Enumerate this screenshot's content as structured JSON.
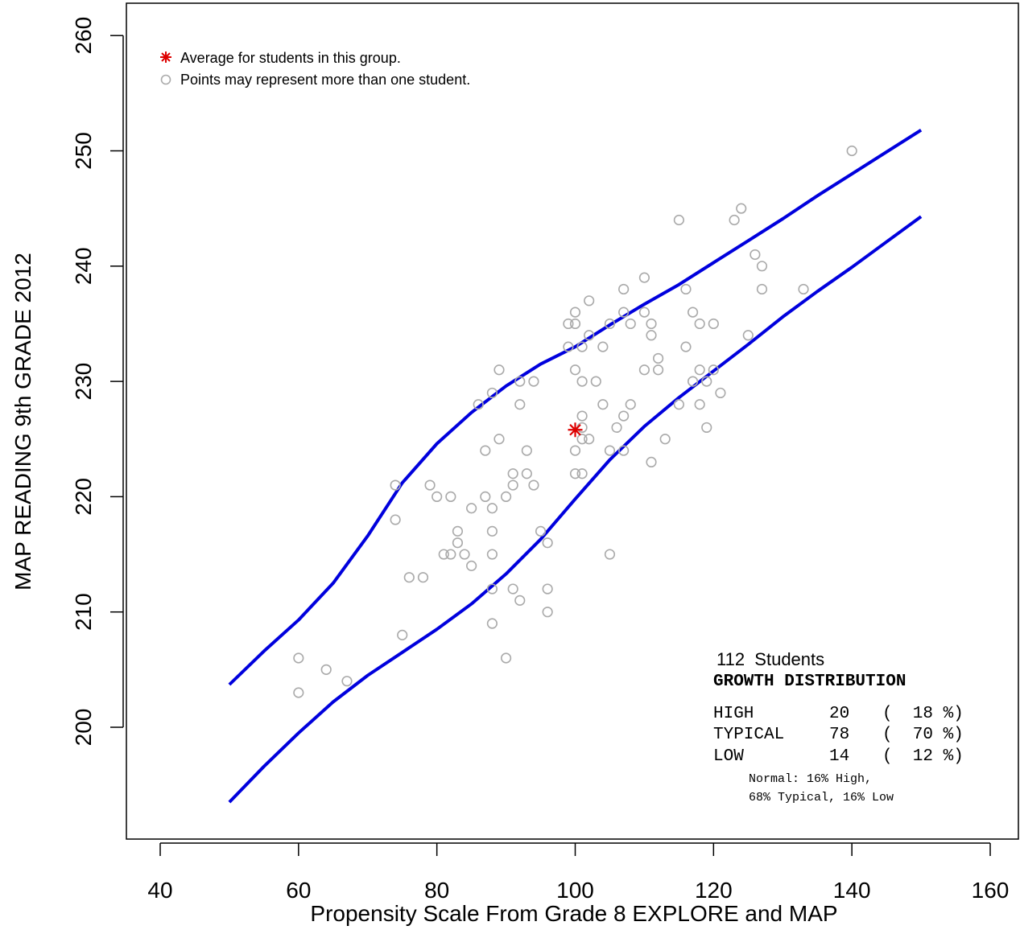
{
  "chart_data": {
    "type": "scatter",
    "xlabel": "Propensity Scale From Grade 8 EXPLORE and MAP",
    "ylabel": "MAP READING 9th GRADE 2012",
    "xlim": [
      40,
      160
    ],
    "ylim": [
      192,
      262
    ],
    "x_ticks": [
      40,
      60,
      80,
      100,
      120,
      140,
      160
    ],
    "y_ticks": [
      200,
      210,
      220,
      230,
      240,
      250,
      260
    ],
    "grid": false,
    "legend_placement": "top-left",
    "legend": [
      {
        "symbol": "asterisk",
        "color": "#dd0000",
        "label": "Average for students in this group."
      },
      {
        "symbol": "circle",
        "color": "#aaaaaa",
        "label": "Points may represent more than one student."
      }
    ],
    "colors": {
      "points": "#aaaaaa",
      "average": "#dd0000",
      "band": "#0000dd"
    },
    "average_point": {
      "x": 100,
      "y": 225.8
    },
    "points": [
      [
        60,
        206
      ],
      [
        60,
        203
      ],
      [
        64,
        205
      ],
      [
        67,
        204
      ],
      [
        74,
        221
      ],
      [
        74,
        218
      ],
      [
        75,
        208
      ],
      [
        76,
        213
      ],
      [
        78,
        213
      ],
      [
        79,
        221
      ],
      [
        80,
        220
      ],
      [
        81,
        215
      ],
      [
        82,
        220
      ],
      [
        82,
        215
      ],
      [
        83,
        217
      ],
      [
        83,
        216
      ],
      [
        84,
        215
      ],
      [
        85,
        219
      ],
      [
        85,
        214
      ],
      [
        86,
        228
      ],
      [
        87,
        224
      ],
      [
        87,
        220
      ],
      [
        88,
        229
      ],
      [
        88,
        219
      ],
      [
        88,
        217
      ],
      [
        88,
        215
      ],
      [
        88,
        212
      ],
      [
        88,
        209
      ],
      [
        89,
        231
      ],
      [
        89,
        225
      ],
      [
        90,
        220
      ],
      [
        90,
        206
      ],
      [
        91,
        222
      ],
      [
        91,
        221
      ],
      [
        91,
        212
      ],
      [
        92,
        230
      ],
      [
        92,
        228
      ],
      [
        92,
        211
      ],
      [
        93,
        224
      ],
      [
        93,
        222
      ],
      [
        94,
        230
      ],
      [
        94,
        221
      ],
      [
        95,
        217
      ],
      [
        96,
        216
      ],
      [
        96,
        212
      ],
      [
        96,
        210
      ],
      [
        99,
        235
      ],
      [
        99,
        233
      ],
      [
        100,
        236
      ],
      [
        100,
        235
      ],
      [
        100,
        231
      ],
      [
        100,
        224
      ],
      [
        100,
        222
      ],
      [
        101,
        233
      ],
      [
        101,
        230
      ],
      [
        101,
        227
      ],
      [
        101,
        226
      ],
      [
        101,
        225
      ],
      [
        101,
        222
      ],
      [
        102,
        237
      ],
      [
        102,
        234
      ],
      [
        102,
        225
      ],
      [
        103,
        230
      ],
      [
        104,
        233
      ],
      [
        104,
        228
      ],
      [
        105,
        235
      ],
      [
        105,
        224
      ],
      [
        105,
        215
      ],
      [
        106,
        226
      ],
      [
        107,
        238
      ],
      [
        107,
        236
      ],
      [
        107,
        227
      ],
      [
        107,
        224
      ],
      [
        108,
        235
      ],
      [
        108,
        228
      ],
      [
        110,
        239
      ],
      [
        110,
        236
      ],
      [
        110,
        231
      ],
      [
        111,
        235
      ],
      [
        111,
        234
      ],
      [
        111,
        223
      ],
      [
        112,
        232
      ],
      [
        112,
        231
      ],
      [
        113,
        225
      ],
      [
        115,
        244
      ],
      [
        115,
        228
      ],
      [
        116,
        238
      ],
      [
        116,
        233
      ],
      [
        117,
        236
      ],
      [
        117,
        230
      ],
      [
        118,
        235
      ],
      [
        118,
        231
      ],
      [
        118,
        228
      ],
      [
        119,
        230
      ],
      [
        119,
        226
      ],
      [
        120,
        235
      ],
      [
        120,
        231
      ],
      [
        121,
        229
      ],
      [
        123,
        244
      ],
      [
        124,
        245
      ],
      [
        125,
        234
      ],
      [
        126,
        241
      ],
      [
        127,
        240
      ],
      [
        127,
        238
      ],
      [
        133,
        238
      ],
      [
        140,
        250
      ]
    ],
    "series": [
      {
        "values": [
          [
            50,
            203.7
          ],
          [
            55,
            206.6
          ],
          [
            60,
            209.3
          ],
          [
            65,
            212.5
          ],
          [
            70,
            216.6
          ],
          [
            75,
            221.2
          ],
          [
            80,
            224.6
          ],
          [
            85,
            227.3
          ],
          [
            90,
            229.6
          ],
          [
            95,
            231.5
          ],
          [
            100,
            233.0
          ],
          [
            105,
            234.9
          ],
          [
            110,
            236.7
          ],
          [
            115,
            238.4
          ],
          [
            120,
            240.3
          ],
          [
            125,
            242.2
          ],
          [
            130,
            244.1
          ],
          [
            135,
            246.1
          ],
          [
            140,
            248.0
          ],
          [
            145,
            249.9
          ],
          [
            150,
            251.8
          ]
        ]
      },
      {
        "values": [
          [
            50,
            193.5
          ],
          [
            55,
            196.6
          ],
          [
            60,
            199.5
          ],
          [
            65,
            202.2
          ],
          [
            70,
            204.5
          ],
          [
            75,
            206.5
          ],
          [
            80,
            208.5
          ],
          [
            85,
            210.7
          ],
          [
            90,
            213.3
          ],
          [
            95,
            216.3
          ],
          [
            100,
            219.8
          ],
          [
            105,
            223.2
          ],
          [
            110,
            226.1
          ],
          [
            115,
            228.6
          ],
          [
            120,
            230.9
          ],
          [
            125,
            233.2
          ],
          [
            130,
            235.6
          ],
          [
            135,
            237.8
          ],
          [
            140,
            239.9
          ],
          [
            145,
            242.1
          ],
          [
            150,
            244.3
          ]
        ]
      }
    ]
  },
  "summary": {
    "students": "112  Students",
    "heading": "GROWTH DISTRIBUTION",
    "rows": [
      {
        "label": "HIGH",
        "count": "20",
        "pct": "(  18 %)"
      },
      {
        "label": "TYPICAL",
        "count": "78",
        "pct": "(  70 %)"
      },
      {
        "label": "LOW",
        "count": "14",
        "pct": "(  12 %)"
      }
    ],
    "note_line1": "Normal: 16% High,",
    "note_line2": "68% Typical, 16% Low"
  }
}
